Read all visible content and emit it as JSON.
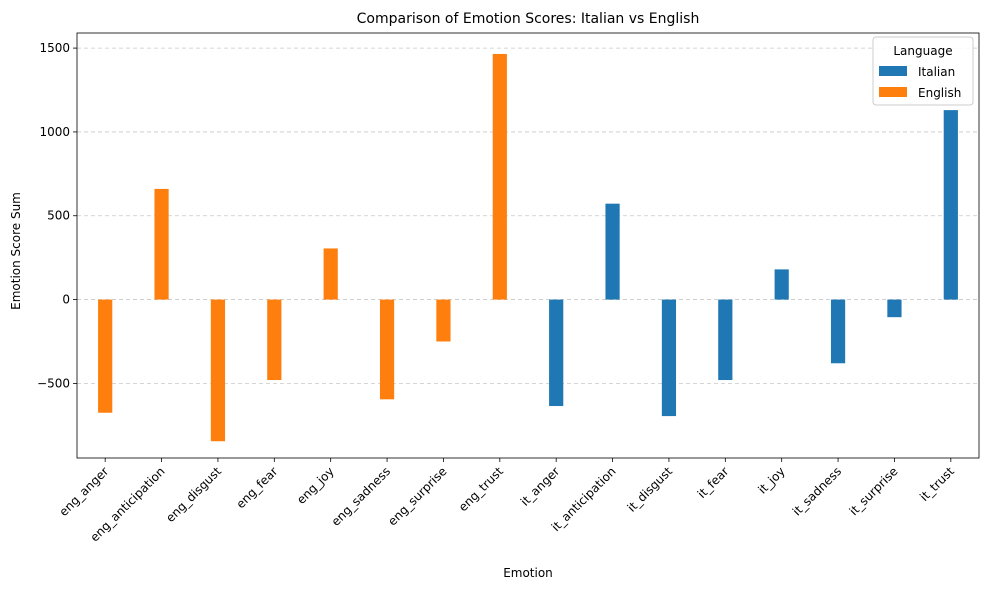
{
  "chart_data": {
    "type": "bar",
    "title": "Comparison of Emotion Scores: Italian vs English",
    "xlabel": "Emotion",
    "ylabel": "Emotion Score Sum",
    "ylim": [
      -945,
      1590
    ],
    "yticks": [
      -500,
      0,
      500,
      1000,
      1500
    ],
    "ytick_labels": [
      "−500",
      "0",
      "500",
      "1000",
      "1500"
    ],
    "grid": "y-dashed",
    "legend_position": "top-right",
    "legend_title": "Language",
    "categories": [
      "eng_anger",
      "eng_anticipation",
      "eng_disgust",
      "eng_fear",
      "eng_joy",
      "eng_sadness",
      "eng_surprise",
      "eng_trust",
      "it_anger",
      "it_anticipation",
      "it_disgust",
      "it_fear",
      "it_joy",
      "it_sadness",
      "it_surprise",
      "it_trust"
    ],
    "series": [
      {
        "name": "Italian",
        "color": "#1f77b4",
        "values": [
          null,
          null,
          null,
          null,
          null,
          null,
          null,
          null,
          -635,
          572,
          -695,
          -480,
          180,
          -380,
          -105,
          1130
        ]
      },
      {
        "name": "English",
        "color": "#ff7f0e",
        "values": [
          -675,
          660,
          -845,
          -480,
          305,
          -595,
          -250,
          1465,
          null,
          null,
          null,
          null,
          null,
          null,
          null,
          null
        ]
      }
    ]
  }
}
